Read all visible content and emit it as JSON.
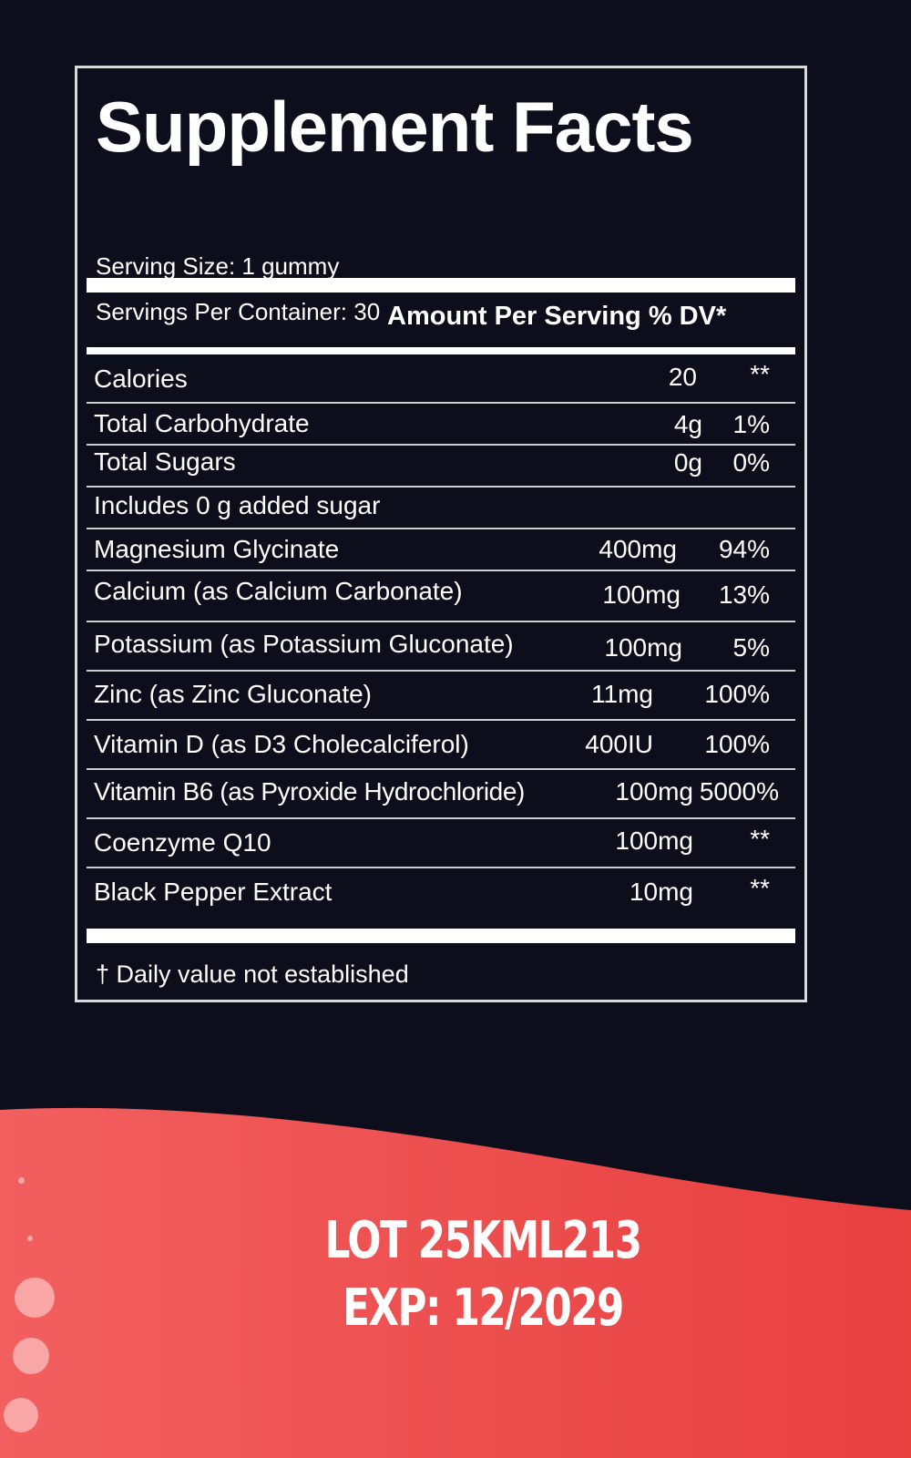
{
  "colors": {
    "background": "#0c0f1b",
    "accent": "#ec4545",
    "text": "#ffffff"
  },
  "facts": {
    "title": "Supplement Facts",
    "serving_size": "Serving Size: 1 gummy",
    "servings_per_container": "Servings Per Container: 30",
    "column_header": "Amount Per Serving % DV*",
    "rows": [
      {
        "name": "Calories",
        "amount": "20",
        "dv": "**"
      },
      {
        "name": "Total Carbohydrate",
        "amount": "4g",
        "dv": "1%"
      },
      {
        "name": "Total Sugars",
        "amount": "0g",
        "dv": "0%"
      },
      {
        "name": "Includes 0 g added sugar",
        "amount": "",
        "dv": ""
      },
      {
        "name": "Magnesium Glycinate",
        "amount": "400mg",
        "dv": "94%"
      },
      {
        "name": "Calcium (as Calcium Carbonate)",
        "amount": "100mg",
        "dv": "13%"
      },
      {
        "name": "Potassium (as Potassium Gluconate)",
        "amount": "100mg",
        "dv": "5%"
      },
      {
        "name": "Zinc (as Zinc Gluconate)",
        "amount": "11mg",
        "dv": "100%"
      },
      {
        "name": "Vitamin D (as D3 Cholecalciferol)",
        "amount": "400IU",
        "dv": "100%"
      },
      {
        "name": "Vitamin B6 (as Pyroxide Hydrochloride)",
        "amount": "100mg",
        "dv": "5000%"
      },
      {
        "name": "Coenzyme Q10",
        "amount": "100mg",
        "dv": "**"
      },
      {
        "name": "Black Pepper Extract",
        "amount": "10mg",
        "dv": "**"
      }
    ],
    "footnote": "† Daily value not established"
  },
  "lot": {
    "lot_number": "LOT 25KML213",
    "expiration": "EXP: 12/2029"
  }
}
